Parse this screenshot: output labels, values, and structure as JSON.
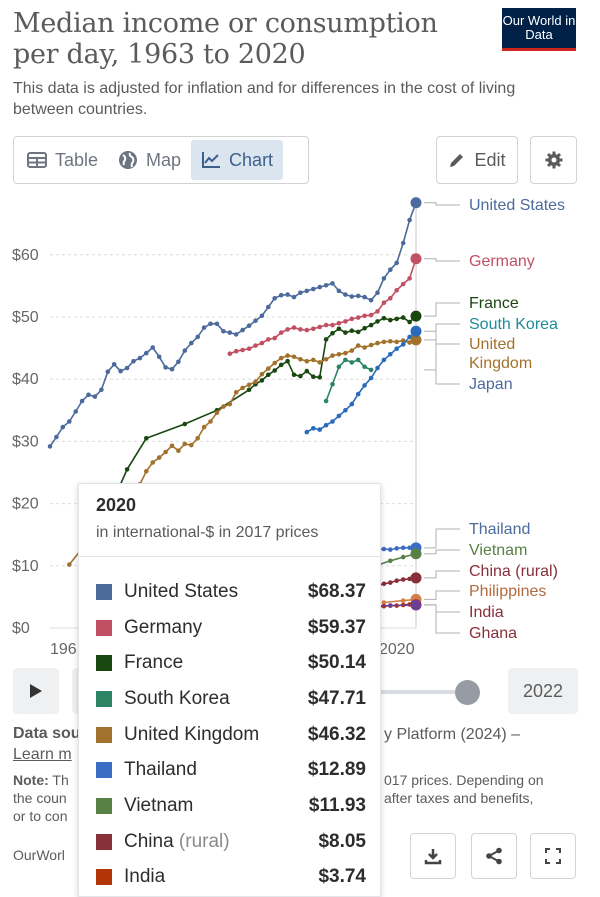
{
  "header": {
    "title": "Median income or consumption per day, 1963 to 2020",
    "subtitle": "This data is adjusted for inflation and for differences in the cost of living between countries.",
    "logo_text": "Our World in Data"
  },
  "tabs": [
    {
      "label": "Table",
      "icon": "table-icon",
      "active": false
    },
    {
      "label": "Map",
      "icon": "globe-icon",
      "active": false
    },
    {
      "label": "Chart",
      "icon": "line-chart-icon",
      "active": true
    }
  ],
  "toolbar": {
    "edit_label": "Edit",
    "settings_icon": "gear-icon"
  },
  "chart_data": {
    "type": "line",
    "x_tick_labels": [
      "196",
      "2020"
    ],
    "y_ticks": [
      0,
      10,
      20,
      30,
      40,
      50,
      60
    ],
    "y_tick_labels": [
      "$0",
      "$10",
      "$20",
      "$30",
      "$40",
      "$50",
      "$60"
    ],
    "ylim": [
      0,
      72
    ],
    "xlim": [
      1963,
      2020
    ],
    "grid": true,
    "legend": "right",
    "series": [
      {
        "name": "United States",
        "color": "#4c6a9c",
        "label_color": "#4c6a9c",
        "end": 68.37,
        "points": [
          [
            1963,
            29.2
          ],
          [
            1964,
            30.7
          ],
          [
            1965,
            32.3
          ],
          [
            1966,
            33.2
          ],
          [
            1967,
            34.8
          ],
          [
            1968,
            36.5
          ],
          [
            1969,
            37.5
          ],
          [
            1970,
            37.2
          ],
          [
            1971,
            38.3
          ],
          [
            1972,
            41.2
          ],
          [
            1973,
            42.4
          ],
          [
            1974,
            41.3
          ],
          [
            1975,
            41.8
          ],
          [
            1976,
            42.9
          ],
          [
            1977,
            43.4
          ],
          [
            1978,
            44.2
          ],
          [
            1979,
            45.1
          ],
          [
            1980,
            43.6
          ],
          [
            1981,
            41.9
          ],
          [
            1982,
            41.6
          ],
          [
            1983,
            42.8
          ],
          [
            1984,
            44.6
          ],
          [
            1985,
            45.8
          ],
          [
            1986,
            46.8
          ],
          [
            1987,
            48.3
          ],
          [
            1988,
            48.9
          ],
          [
            1989,
            48.9
          ],
          [
            1990,
            47.7
          ],
          [
            1991,
            47.5
          ],
          [
            1992,
            47.2
          ],
          [
            1993,
            47.9
          ],
          [
            1994,
            48.6
          ],
          [
            1995,
            49.4
          ],
          [
            1996,
            50.2
          ],
          [
            1997,
            51.6
          ],
          [
            1998,
            53.0
          ],
          [
            1999,
            53.5
          ],
          [
            2000,
            53.6
          ],
          [
            2001,
            53.2
          ],
          [
            2002,
            53.9
          ],
          [
            2003,
            54.2
          ],
          [
            2004,
            54.5
          ],
          [
            2005,
            54.8
          ],
          [
            2006,
            55.1
          ],
          [
            2007,
            55.4
          ],
          [
            2008,
            54.2
          ],
          [
            2009,
            53.6
          ],
          [
            2010,
            53.3
          ],
          [
            2011,
            53.4
          ],
          [
            2012,
            53.2
          ],
          [
            2013,
            52.7
          ],
          [
            2014,
            53.9
          ],
          [
            2015,
            56.2
          ],
          [
            2016,
            57.6
          ],
          [
            2017,
            58.7
          ],
          [
            2018,
            61.9
          ],
          [
            2019,
            65.6
          ],
          [
            2020,
            68.37
          ]
        ]
      },
      {
        "name": "Germany",
        "color": "#c15065",
        "label_color": "#c15065",
        "end": 59.37,
        "points": [
          [
            1991,
            44.1
          ],
          [
            1992,
            44.5
          ],
          [
            1993,
            44.7
          ],
          [
            1994,
            44.9
          ],
          [
            1995,
            45.4
          ],
          [
            1996,
            45.8
          ],
          [
            1997,
            46.4
          ],
          [
            1998,
            46.6
          ],
          [
            1999,
            47.5
          ],
          [
            2000,
            48.0
          ],
          [
            2001,
            48.3
          ],
          [
            2002,
            48.0
          ],
          [
            2003,
            47.9
          ],
          [
            2004,
            48.1
          ],
          [
            2005,
            48.4
          ],
          [
            2006,
            48.7
          ],
          [
            2007,
            48.7
          ],
          [
            2008,
            49.0
          ],
          [
            2009,
            49.3
          ],
          [
            2010,
            49.7
          ],
          [
            2011,
            49.9
          ],
          [
            2012,
            50.2
          ],
          [
            2013,
            50.3
          ],
          [
            2014,
            50.9
          ],
          [
            2015,
            52.3
          ],
          [
            2016,
            53.0
          ],
          [
            2017,
            54.3
          ],
          [
            2018,
            55.3
          ],
          [
            2019,
            56.2
          ],
          [
            2020,
            59.37
          ]
        ]
      },
      {
        "name": "France",
        "color": "#18470f",
        "label_color": "#18470f",
        "end": 50.14,
        "points": [
          [
            1970,
            13.8
          ],
          [
            1975,
            25.5
          ],
          [
            1978,
            30.5
          ],
          [
            1984,
            32.8
          ],
          [
            1989,
            35.0
          ],
          [
            1994,
            38.3
          ],
          [
            1995,
            39.2
          ],
          [
            1996,
            39.8
          ],
          [
            1997,
            40.7
          ],
          [
            1998,
            41.4
          ],
          [
            1999,
            42.3
          ],
          [
            2000,
            42.9
          ],
          [
            2001,
            40.7
          ],
          [
            2002,
            40.5
          ],
          [
            2003,
            41.3
          ],
          [
            2004,
            40.4
          ],
          [
            2005,
            40.3
          ],
          [
            2006,
            46.4
          ],
          [
            2007,
            47.4
          ],
          [
            2008,
            48.1
          ],
          [
            2009,
            47.5
          ],
          [
            2010,
            47.8
          ],
          [
            2011,
            47.6
          ],
          [
            2012,
            48.2
          ],
          [
            2013,
            48.7
          ],
          [
            2014,
            49.3
          ],
          [
            2015,
            49.8
          ],
          [
            2016,
            49.5
          ],
          [
            2017,
            49.7
          ],
          [
            2018,
            49.9
          ],
          [
            2019,
            49.2
          ],
          [
            2020,
            50.14
          ]
        ]
      },
      {
        "name": "South Korea",
        "color": "#2c8465",
        "label_color": "#1d8d99",
        "end": 47.71,
        "points": [
          [
            2006,
            36.5
          ],
          [
            2007,
            39.2
          ],
          [
            2008,
            42.0
          ],
          [
            2009,
            43.1
          ],
          [
            2010,
            42.7
          ],
          [
            2011,
            43.1
          ],
          [
            2012,
            42.0
          ],
          [
            2013,
            41.5
          ]
        ]
      },
      {
        "name": "United Kingdom",
        "color": "#a2722d",
        "label_color": "#a2722d",
        "end": 46.32,
        "points": [
          [
            1966,
            10.2
          ],
          [
            1968,
            12.8
          ],
          [
            1972,
            15.0
          ],
          [
            1974,
            16.3
          ],
          [
            1975,
            20.6
          ],
          [
            1976,
            21.7
          ],
          [
            1977,
            23.1
          ],
          [
            1978,
            25.2
          ],
          [
            1979,
            26.6
          ],
          [
            1980,
            27.4
          ],
          [
            1981,
            28.3
          ],
          [
            1982,
            29.3
          ],
          [
            1983,
            28.5
          ],
          [
            1984,
            29.6
          ],
          [
            1985,
            29.4
          ],
          [
            1986,
            30.5
          ],
          [
            1987,
            32.3
          ],
          [
            1988,
            33.2
          ],
          [
            1989,
            34.6
          ],
          [
            1990,
            35.6
          ],
          [
            1991,
            36.0
          ],
          [
            1992,
            37.9
          ],
          [
            1993,
            38.6
          ],
          [
            1994,
            39.1
          ],
          [
            1995,
            39.6
          ],
          [
            1996,
            40.8
          ],
          [
            1997,
            41.7
          ],
          [
            1998,
            42.6
          ],
          [
            1999,
            43.4
          ],
          [
            2000,
            43.8
          ],
          [
            2001,
            43.6
          ],
          [
            2002,
            43.2
          ],
          [
            2003,
            42.9
          ],
          [
            2004,
            43.1
          ],
          [
            2005,
            42.7
          ],
          [
            2006,
            43.2
          ],
          [
            2007,
            43.8
          ],
          [
            2008,
            44.0
          ],
          [
            2009,
            44.2
          ],
          [
            2010,
            44.6
          ],
          [
            2011,
            45.4
          ],
          [
            2012,
            45.1
          ],
          [
            2013,
            45.5
          ],
          [
            2014,
            45.8
          ],
          [
            2015,
            46.0
          ],
          [
            2016,
            46.1
          ],
          [
            2017,
            46.0
          ],
          [
            2018,
            46.2
          ],
          [
            2019,
            45.9
          ],
          [
            2020,
            46.32
          ]
        ]
      },
      {
        "name": "Japan",
        "color": "#286bbb",
        "label_color": "#4c6a9c",
        "end": 47.71,
        "points": [
          [
            2003,
            31.5
          ],
          [
            2004,
            32.1
          ],
          [
            2005,
            31.9
          ],
          [
            2006,
            32.6
          ],
          [
            2007,
            33.2
          ],
          [
            2008,
            34.1
          ],
          [
            2009,
            35.0
          ],
          [
            2010,
            36.0
          ],
          [
            2011,
            37.6
          ],
          [
            2012,
            39.0
          ],
          [
            2013,
            40.2
          ],
          [
            2014,
            41.8
          ],
          [
            2015,
            43.1
          ],
          [
            2016,
            44.0
          ],
          [
            2017,
            44.9
          ],
          [
            2018,
            45.6
          ],
          [
            2019,
            46.8
          ],
          [
            2020,
            47.71
          ]
        ]
      },
      {
        "name": "Thailand",
        "color": "#3b6dc4",
        "label_color": "#4c6a9c",
        "end": 12.89,
        "points": [
          [
            2011,
            12.4
          ],
          [
            2012,
            12.5
          ],
          [
            2013,
            12.4
          ],
          [
            2014,
            12.6
          ],
          [
            2015,
            12.7
          ],
          [
            2016,
            12.6
          ],
          [
            2017,
            12.8
          ],
          [
            2018,
            12.9
          ],
          [
            2019,
            12.9
          ],
          [
            2020,
            12.89
          ]
        ]
      },
      {
        "name": "Vietnam",
        "color": "#578145",
        "label_color": "#578145",
        "end": 11.93,
        "points": [
          [
            2014,
            10.1
          ],
          [
            2016,
            10.8
          ],
          [
            2018,
            11.4
          ],
          [
            2020,
            11.93
          ]
        ]
      },
      {
        "name": "China",
        "name_suffix": "(rural)",
        "color": "#883039",
        "label_color": "#883039",
        "end": 8.05,
        "points": [
          [
            2011,
            5.9
          ],
          [
            2012,
            6.2
          ],
          [
            2013,
            6.5
          ],
          [
            2014,
            6.8
          ],
          [
            2015,
            7.1
          ],
          [
            2016,
            7.3
          ],
          [
            2017,
            7.6
          ],
          [
            2018,
            7.8
          ],
          [
            2019,
            7.9
          ],
          [
            2020,
            8.05
          ]
        ]
      },
      {
        "name": "Philippines",
        "color": "#d37f4b",
        "label_color": "#b26b3e",
        "end": 4.6,
        "points": [
          [
            2015,
            4.1
          ],
          [
            2018,
            4.4
          ],
          [
            2020,
            4.6
          ]
        ]
      },
      {
        "name": "India",
        "color": "#b13507",
        "label_color": "#883039",
        "end": 3.74,
        "points": [
          [
            2011,
            3.2
          ],
          [
            2012,
            3.3
          ],
          [
            2013,
            3.4
          ],
          [
            2014,
            3.4
          ],
          [
            2015,
            3.5
          ],
          [
            2016,
            3.6
          ],
          [
            2017,
            3.6
          ],
          [
            2018,
            3.7
          ],
          [
            2019,
            3.8
          ],
          [
            2020,
            3.74
          ]
        ]
      },
      {
        "name": "Ghana",
        "color": "#6d3e91",
        "label_color": "#883039",
        "end": 3.7,
        "points": [
          [
            2012,
            3.5
          ],
          [
            2016,
            3.6
          ],
          [
            2020,
            3.7
          ]
        ]
      }
    ],
    "labels_visible": [
      "United States",
      "Germany",
      "France",
      "South Korea",
      "United Kingdom",
      "Japan",
      "Thailand",
      "Vietnam",
      "China (rural)",
      "Philippines",
      "India",
      "Ghana"
    ]
  },
  "timeline": {
    "end_year": "2022"
  },
  "source": {
    "label": "Data sou",
    "right_text": "y Platform (2024) –",
    "learn_more": "Learn m",
    "note_label": "Note:",
    "note_left": [
      "Th",
      "the coun",
      "or to con"
    ],
    "note_right": [
      "017 prices. Depending on",
      "after taxes and benefits,"
    ],
    "credit": "OurWorl"
  },
  "tooltip": {
    "year": "2020",
    "unit": "in international-$ in 2017 prices",
    "rows": [
      {
        "name": "United States",
        "suffix": "",
        "value": "$68.37",
        "color": "#4c6a9c"
      },
      {
        "name": "Germany",
        "suffix": "",
        "value": "$59.37",
        "color": "#c15065"
      },
      {
        "name": "France",
        "suffix": "",
        "value": "$50.14",
        "color": "#18470f"
      },
      {
        "name": "South Korea",
        "suffix": "",
        "value": "$47.71",
        "color": "#2c8465"
      },
      {
        "name": "United Kingdom",
        "suffix": "",
        "value": "$46.32",
        "color": "#a2722d"
      },
      {
        "name": "Thailand",
        "suffix": "",
        "value": "$12.89",
        "color": "#3b6dc4"
      },
      {
        "name": "Vietnam",
        "suffix": "",
        "value": "$11.93",
        "color": "#578145"
      },
      {
        "name": "China",
        "suffix": "(rural)",
        "value": "$8.05",
        "color": "#883039"
      },
      {
        "name": "India",
        "suffix": "",
        "value": "$3.74",
        "color": "#b13507"
      }
    ]
  }
}
